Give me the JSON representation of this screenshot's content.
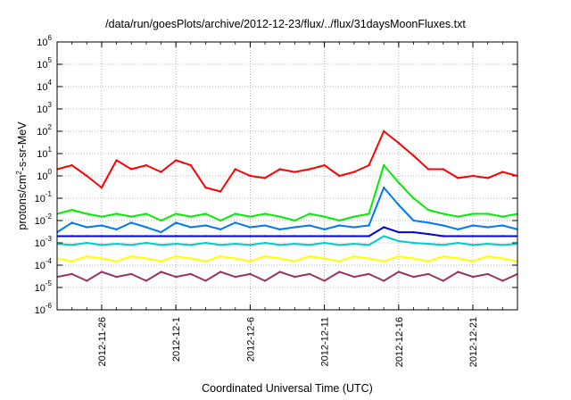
{
  "title": "/data/run/goesPlots/archive/2012-12-23/flux/../flux/31daysMoonFluxes.txt",
  "chart_data": {
    "type": "line",
    "title": "/data/run/goesPlots/archive/2012-12-23/flux/../flux/31daysMoonFluxes.txt",
    "xlabel": "Coordinated Universal Time (UTC)",
    "ylabel": "protons/cm2-s-sr-MeV",
    "ylabel_prefix": "protons/cm",
    "ylabel_sup": "2",
    "ylabel_suffix": "-s-sr-MeV",
    "y_scale": "log",
    "ylim": [
      1e-06,
      1000000.0
    ],
    "xlim": [
      "2012-11-23",
      "2012-12-24"
    ],
    "grid": true,
    "legend": "none",
    "x_ticks": [
      "2012-11-26",
      "2012-12-1",
      "2012-12-6",
      "2012-12-11",
      "2012-12-16",
      "2012-12-21"
    ],
    "x_tick_dates": [
      "2012-11-26",
      "2012-12-01",
      "2012-12-06",
      "2012-12-11",
      "2012-12-16",
      "2012-12-21"
    ],
    "y_ticks": [
      {
        "base": "10",
        "exp": "-6"
      },
      {
        "base": "10",
        "exp": "-5"
      },
      {
        "base": "10",
        "exp": "-4"
      },
      {
        "base": "10",
        "exp": "-3"
      },
      {
        "base": "10",
        "exp": "-2"
      },
      {
        "base": "10",
        "exp": "-1"
      },
      {
        "base": "10",
        "exp": "0"
      },
      {
        "base": "10",
        "exp": "1"
      },
      {
        "base": "10",
        "exp": "2"
      },
      {
        "base": "10",
        "exp": "3"
      },
      {
        "base": "10",
        "exp": "4"
      },
      {
        "base": "10",
        "exp": "5"
      },
      {
        "base": "10",
        "exp": "6"
      }
    ],
    "x": [
      "2012-11-23",
      "2012-11-24",
      "2012-11-25",
      "2012-11-26",
      "2012-11-27",
      "2012-11-28",
      "2012-11-29",
      "2012-11-30",
      "2012-12-01",
      "2012-12-02",
      "2012-12-03",
      "2012-12-04",
      "2012-12-05",
      "2012-12-06",
      "2012-12-07",
      "2012-12-08",
      "2012-12-09",
      "2012-12-10",
      "2012-12-11",
      "2012-12-12",
      "2012-12-13",
      "2012-12-14",
      "2012-12-15",
      "2012-12-16",
      "2012-12-17",
      "2012-12-18",
      "2012-12-19",
      "2012-12-20",
      "2012-12-21",
      "2012-12-22",
      "2012-12-23",
      "2012-12-24"
    ],
    "series": [
      {
        "color": "#ff0000",
        "values": [
          2,
          3,
          1,
          0.3,
          5,
          2,
          3,
          1.5,
          5,
          3,
          0.3,
          0.2,
          2,
          1,
          0.8,
          2,
          1.5,
          2,
          3,
          1,
          1.5,
          3,
          100,
          30,
          8,
          2,
          2,
          0.8,
          1,
          0.8,
          1.5,
          1
        ]
      },
      {
        "color": "#00ee00",
        "values": [
          0.02,
          0.03,
          0.02,
          0.015,
          0.02,
          0.015,
          0.02,
          0.01,
          0.02,
          0.015,
          0.02,
          0.01,
          0.02,
          0.015,
          0.02,
          0.015,
          0.01,
          0.02,
          0.015,
          0.01,
          0.015,
          0.02,
          3,
          0.5,
          0.1,
          0.03,
          0.02,
          0.015,
          0.02,
          0.02,
          0.015,
          0.02
        ]
      },
      {
        "color": "#0077ff",
        "values": [
          0.003,
          0.008,
          0.005,
          0.006,
          0.004,
          0.008,
          0.005,
          0.003,
          0.008,
          0.005,
          0.006,
          0.004,
          0.008,
          0.005,
          0.006,
          0.004,
          0.005,
          0.006,
          0.004,
          0.006,
          0.005,
          0.006,
          0.3,
          0.05,
          0.01,
          0.008,
          0.006,
          0.004,
          0.006,
          0.005,
          0.006,
          0.004
        ]
      },
      {
        "color": "#0000dd",
        "values": [
          0.002,
          0.002,
          0.002,
          0.002,
          0.002,
          0.002,
          0.002,
          0.002,
          0.002,
          0.002,
          0.002,
          0.002,
          0.002,
          0.002,
          0.002,
          0.002,
          0.002,
          0.002,
          0.002,
          0.002,
          0.002,
          0.002,
          0.005,
          0.003,
          0.003,
          0.0025,
          0.002,
          0.002,
          0.002,
          0.002,
          0.002,
          0.002
        ]
      },
      {
        "color": "#00cccc",
        "values": [
          0.0009,
          0.0008,
          0.001,
          0.0008,
          0.0009,
          0.0008,
          0.001,
          0.0008,
          0.0009,
          0.0008,
          0.001,
          0.0008,
          0.0009,
          0.0008,
          0.001,
          0.0008,
          0.0009,
          0.0008,
          0.001,
          0.0008,
          0.0009,
          0.0008,
          0.002,
          0.0012,
          0.001,
          0.0009,
          0.0008,
          0.001,
          0.0008,
          0.0009,
          0.0008,
          0.0009
        ]
      },
      {
        "color": "#ffff00",
        "values": [
          0.0002,
          0.00015,
          0.00025,
          0.0002,
          0.00015,
          0.00025,
          0.0002,
          0.00015,
          0.00025,
          0.0002,
          0.00015,
          0.00025,
          0.0002,
          0.00015,
          0.00025,
          0.0002,
          0.00015,
          0.00025,
          0.0002,
          0.00015,
          0.00025,
          0.0002,
          0.00015,
          0.00025,
          0.0002,
          0.00015,
          0.00025,
          0.0002,
          0.00015,
          0.00025,
          0.0002,
          0.00015
        ]
      },
      {
        "color": "#993366",
        "values": [
          3e-05,
          4e-05,
          2e-05,
          5e-05,
          3e-05,
          4e-05,
          2e-05,
          5e-05,
          3e-05,
          4e-05,
          2e-05,
          5e-05,
          3e-05,
          4e-05,
          2e-05,
          5e-05,
          3e-05,
          4e-05,
          2e-05,
          5e-05,
          3e-05,
          4e-05,
          2e-05,
          5e-05,
          3e-05,
          4e-05,
          2e-05,
          5e-05,
          3e-05,
          4e-05,
          2e-05,
          4e-05
        ]
      }
    ]
  }
}
